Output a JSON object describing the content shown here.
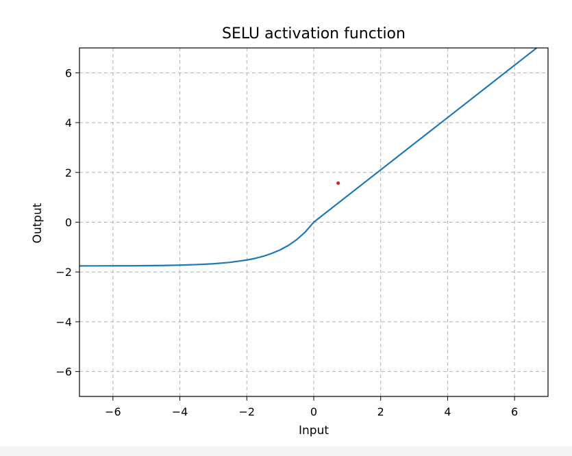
{
  "chart_data": {
    "type": "line",
    "title": "SELU activation function",
    "xlabel": "Input",
    "ylabel": "Output",
    "xlim": [
      -7,
      7
    ],
    "ylim": [
      -7,
      7
    ],
    "xticks": [
      -6,
      -4,
      -2,
      0,
      2,
      4,
      6
    ],
    "yticks": [
      -6,
      -4,
      -2,
      0,
      2,
      4,
      6
    ],
    "xtick_labels": [
      "−6",
      "−4",
      "−2",
      "0",
      "2",
      "4",
      "6"
    ],
    "ytick_labels": [
      "−6",
      "−4",
      "−2",
      "0",
      "2",
      "4",
      "6"
    ],
    "grid": true,
    "grid_style": "dashed",
    "series": [
      {
        "color": "#1f77b4",
        "x": [
          -7,
          -6.5,
          -6,
          -5.5,
          -5,
          -4.5,
          -4,
          -3.5,
          -3,
          -2.5,
          -2,
          -1.75,
          -1.5,
          -1.25,
          -1,
          -0.75,
          -0.5,
          -0.25,
          0,
          1,
          2,
          3,
          4,
          5,
          6,
          6.66
        ],
        "y": [
          -1.756,
          -1.755,
          -1.754,
          -1.753,
          -1.746,
          -1.739,
          -1.726,
          -1.704,
          -1.671,
          -1.614,
          -1.52,
          -1.454,
          -1.367,
          -1.252,
          -1.111,
          -0.928,
          -0.69,
          -0.389,
          0,
          1.051,
          2.101,
          3.152,
          4.203,
          5.254,
          6.304,
          7.0
        ]
      }
    ],
    "points": [
      {
        "x": 0.73,
        "y": 1.57,
        "color": "#d62728"
      }
    ]
  }
}
